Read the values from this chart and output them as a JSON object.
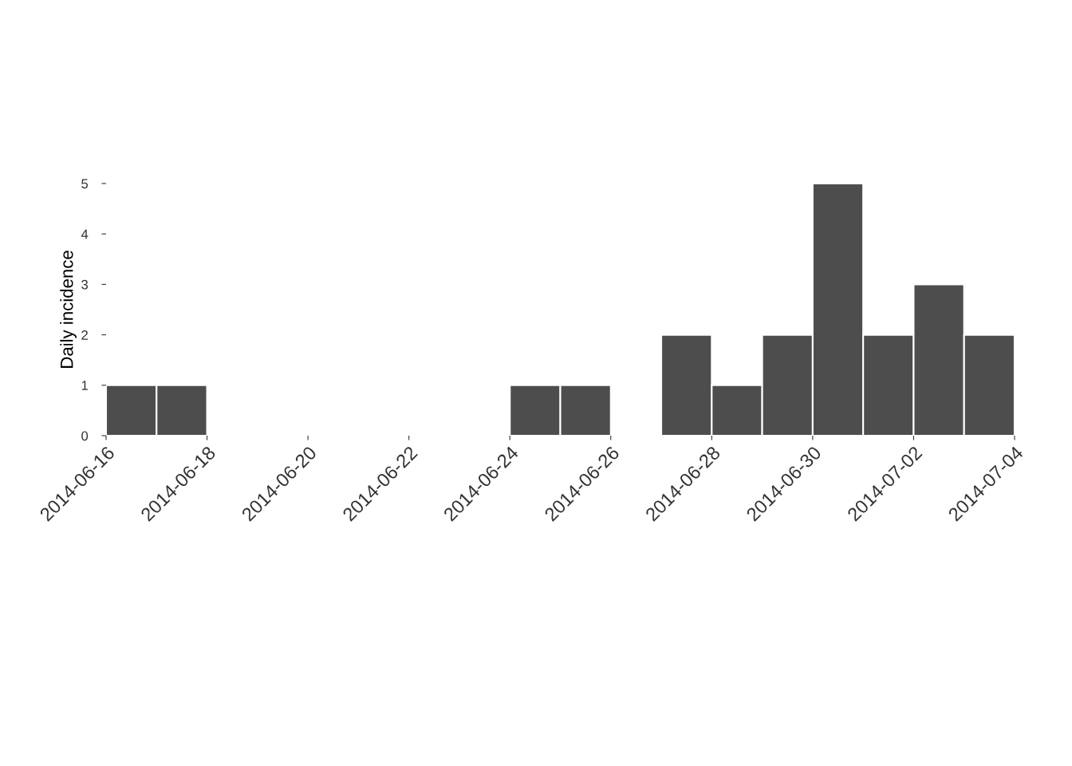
{
  "chart_data": {
    "type": "histogram",
    "ylabel": "Daily incidence",
    "bins": [
      "2014-06-16",
      "2014-06-17",
      "2014-06-18",
      "2014-06-19",
      "2014-06-20",
      "2014-06-21",
      "2014-06-22",
      "2014-06-23",
      "2014-06-24",
      "2014-06-25",
      "2014-06-26",
      "2014-06-27",
      "2014-06-28",
      "2014-06-29",
      "2014-06-30",
      "2014-07-01",
      "2014-07-02",
      "2014-07-03",
      "2014-07-04"
    ],
    "values": [
      1,
      1,
      0,
      0,
      0,
      0,
      0,
      0,
      1,
      1,
      0,
      2,
      1,
      2,
      5,
      2,
      3,
      2
    ],
    "color": "#4d4d4d",
    "xlim": [
      "2014-06-16",
      "2014-07-04"
    ],
    "xticks": [
      "2014-06-16",
      "2014-06-18",
      "2014-06-20",
      "2014-06-22",
      "2014-06-24",
      "2014-06-26",
      "2014-06-28",
      "2014-06-30",
      "2014-07-02",
      "2014-07-04"
    ],
    "ylim": [
      0,
      5
    ],
    "yticks": [
      0,
      1,
      2,
      3,
      4,
      5
    ],
    "grid": false
  }
}
